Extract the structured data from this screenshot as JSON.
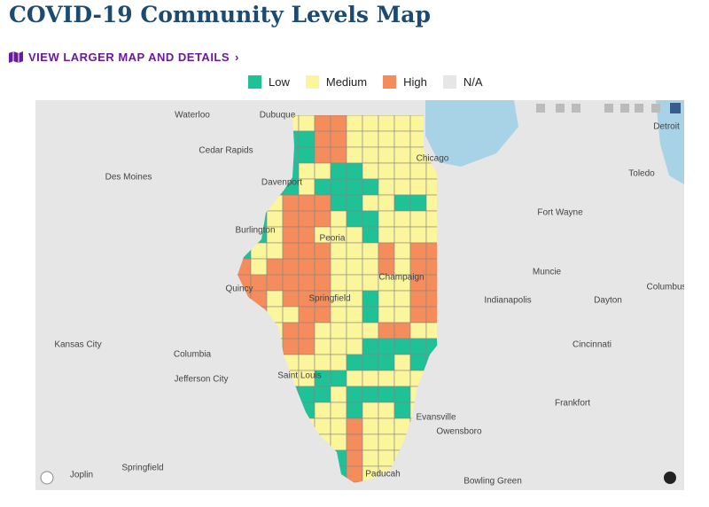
{
  "title": "COVID-19 Community Levels Map",
  "link": "VIEW LARGER MAP AND DETAILS",
  "legend": [
    {
      "label": "Low",
      "color": "#1fc196"
    },
    {
      "label": "Medium",
      "color": "#fbf59b"
    },
    {
      "label": "High",
      "color": "#f58c5b"
    },
    {
      "label": "N/A",
      "color": "#e6e6e6"
    }
  ],
  "cities": [
    "Waterloo",
    "Dubuque",
    "Cedar Rapids",
    "Des Moines",
    "Davenport",
    "Chicago",
    "Detroit",
    "Toledo",
    "Fort Wayne",
    "Burlington",
    "Peoria",
    "Muncie",
    "Quincy",
    "Champaign",
    "Columbus",
    "Springfield",
    "Indianapolis",
    "Dayton",
    "Kansas City",
    "Cincinnati",
    "Columbia",
    "Saint Louis",
    "Jefferson City",
    "Frankfort",
    "Evansville",
    "Owensboro",
    "Joplin",
    "Springfield",
    "Paducah",
    "Bowling Green"
  ]
}
